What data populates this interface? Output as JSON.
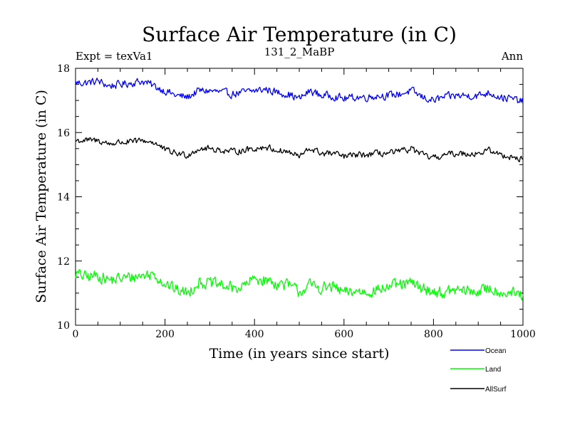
{
  "chart_data": {
    "type": "line",
    "title": "Surface Air Temperature (in C)",
    "experiment_label": "Expt = texVa1",
    "subtitle": "131_2_MaBP",
    "season_label": "Ann",
    "xlabel": "Time (in years since start)",
    "ylabel": "Surface Air Temperature (in C)",
    "xlim": [
      0,
      1000
    ],
    "ylim": [
      10,
      18
    ],
    "x_ticks": [
      0,
      200,
      400,
      600,
      800,
      1000
    ],
    "x_tick_labels": [
      "0",
      "200",
      "400",
      "600",
      "800",
      "1000"
    ],
    "x_minor_step": 50,
    "y_ticks": [
      10,
      12,
      14,
      16,
      18
    ],
    "y_tick_labels": [
      "10",
      "12",
      "14",
      "16",
      "18"
    ],
    "y_minor_step": 0.5,
    "grid": false,
    "legend_position": "bottom-right, outside plot",
    "series": [
      {
        "name": "Ocean",
        "color": "#0000ff",
        "x": [
          0,
          25,
          50,
          75,
          100,
          125,
          150,
          175,
          200,
          225,
          250,
          275,
          300,
          325,
          350,
          375,
          400,
          425,
          450,
          475,
          500,
          525,
          550,
          575,
          600,
          625,
          650,
          675,
          700,
          725,
          750,
          775,
          800,
          825,
          850,
          875,
          900,
          925,
          950,
          975,
          1000
        ],
        "values": [
          17.55,
          17.55,
          17.6,
          17.45,
          17.5,
          17.55,
          17.6,
          17.45,
          17.3,
          17.15,
          17.1,
          17.3,
          17.3,
          17.25,
          17.2,
          17.25,
          17.3,
          17.35,
          17.25,
          17.2,
          17.05,
          17.3,
          17.15,
          17.15,
          17.05,
          17.1,
          17.1,
          17.15,
          17.15,
          17.2,
          17.3,
          17.1,
          17.0,
          17.1,
          17.15,
          17.15,
          17.15,
          17.25,
          17.1,
          17.05,
          16.95
        ]
      },
      {
        "name": "Land",
        "color": "#00ff00",
        "x": [
          0,
          25,
          50,
          75,
          100,
          125,
          150,
          175,
          200,
          225,
          250,
          275,
          300,
          325,
          350,
          375,
          400,
          425,
          450,
          475,
          500,
          525,
          550,
          575,
          600,
          625,
          650,
          675,
          700,
          725,
          750,
          775,
          800,
          825,
          850,
          875,
          900,
          925,
          950,
          975,
          1000
        ],
        "values": [
          11.6,
          11.5,
          11.55,
          11.4,
          11.45,
          11.5,
          11.55,
          11.6,
          11.3,
          11.1,
          11.0,
          11.35,
          11.3,
          11.25,
          11.15,
          11.2,
          11.45,
          11.4,
          11.3,
          11.25,
          11.05,
          11.25,
          11.15,
          11.2,
          11.0,
          11.05,
          11.05,
          11.1,
          11.2,
          11.25,
          11.3,
          11.15,
          11.05,
          11.0,
          11.1,
          11.05,
          11.05,
          11.15,
          11.05,
          11.0,
          10.9
        ]
      },
      {
        "name": "AllSurf",
        "color": "#000000",
        "x": [
          0,
          25,
          50,
          75,
          100,
          125,
          150,
          175,
          200,
          225,
          250,
          275,
          300,
          325,
          350,
          375,
          400,
          425,
          450,
          475,
          500,
          525,
          550,
          575,
          600,
          625,
          650,
          675,
          700,
          725,
          750,
          775,
          800,
          825,
          850,
          875,
          900,
          925,
          950,
          975,
          1000
        ],
        "values": [
          15.75,
          15.75,
          15.75,
          15.65,
          15.7,
          15.7,
          15.75,
          15.7,
          15.45,
          15.35,
          15.3,
          15.5,
          15.5,
          15.45,
          15.4,
          15.45,
          15.5,
          15.55,
          15.45,
          15.4,
          15.25,
          15.5,
          15.35,
          15.35,
          15.25,
          15.3,
          15.3,
          15.35,
          15.35,
          15.4,
          15.5,
          15.3,
          15.2,
          15.3,
          15.35,
          15.35,
          15.35,
          15.45,
          15.3,
          15.25,
          15.15
        ]
      }
    ]
  }
}
